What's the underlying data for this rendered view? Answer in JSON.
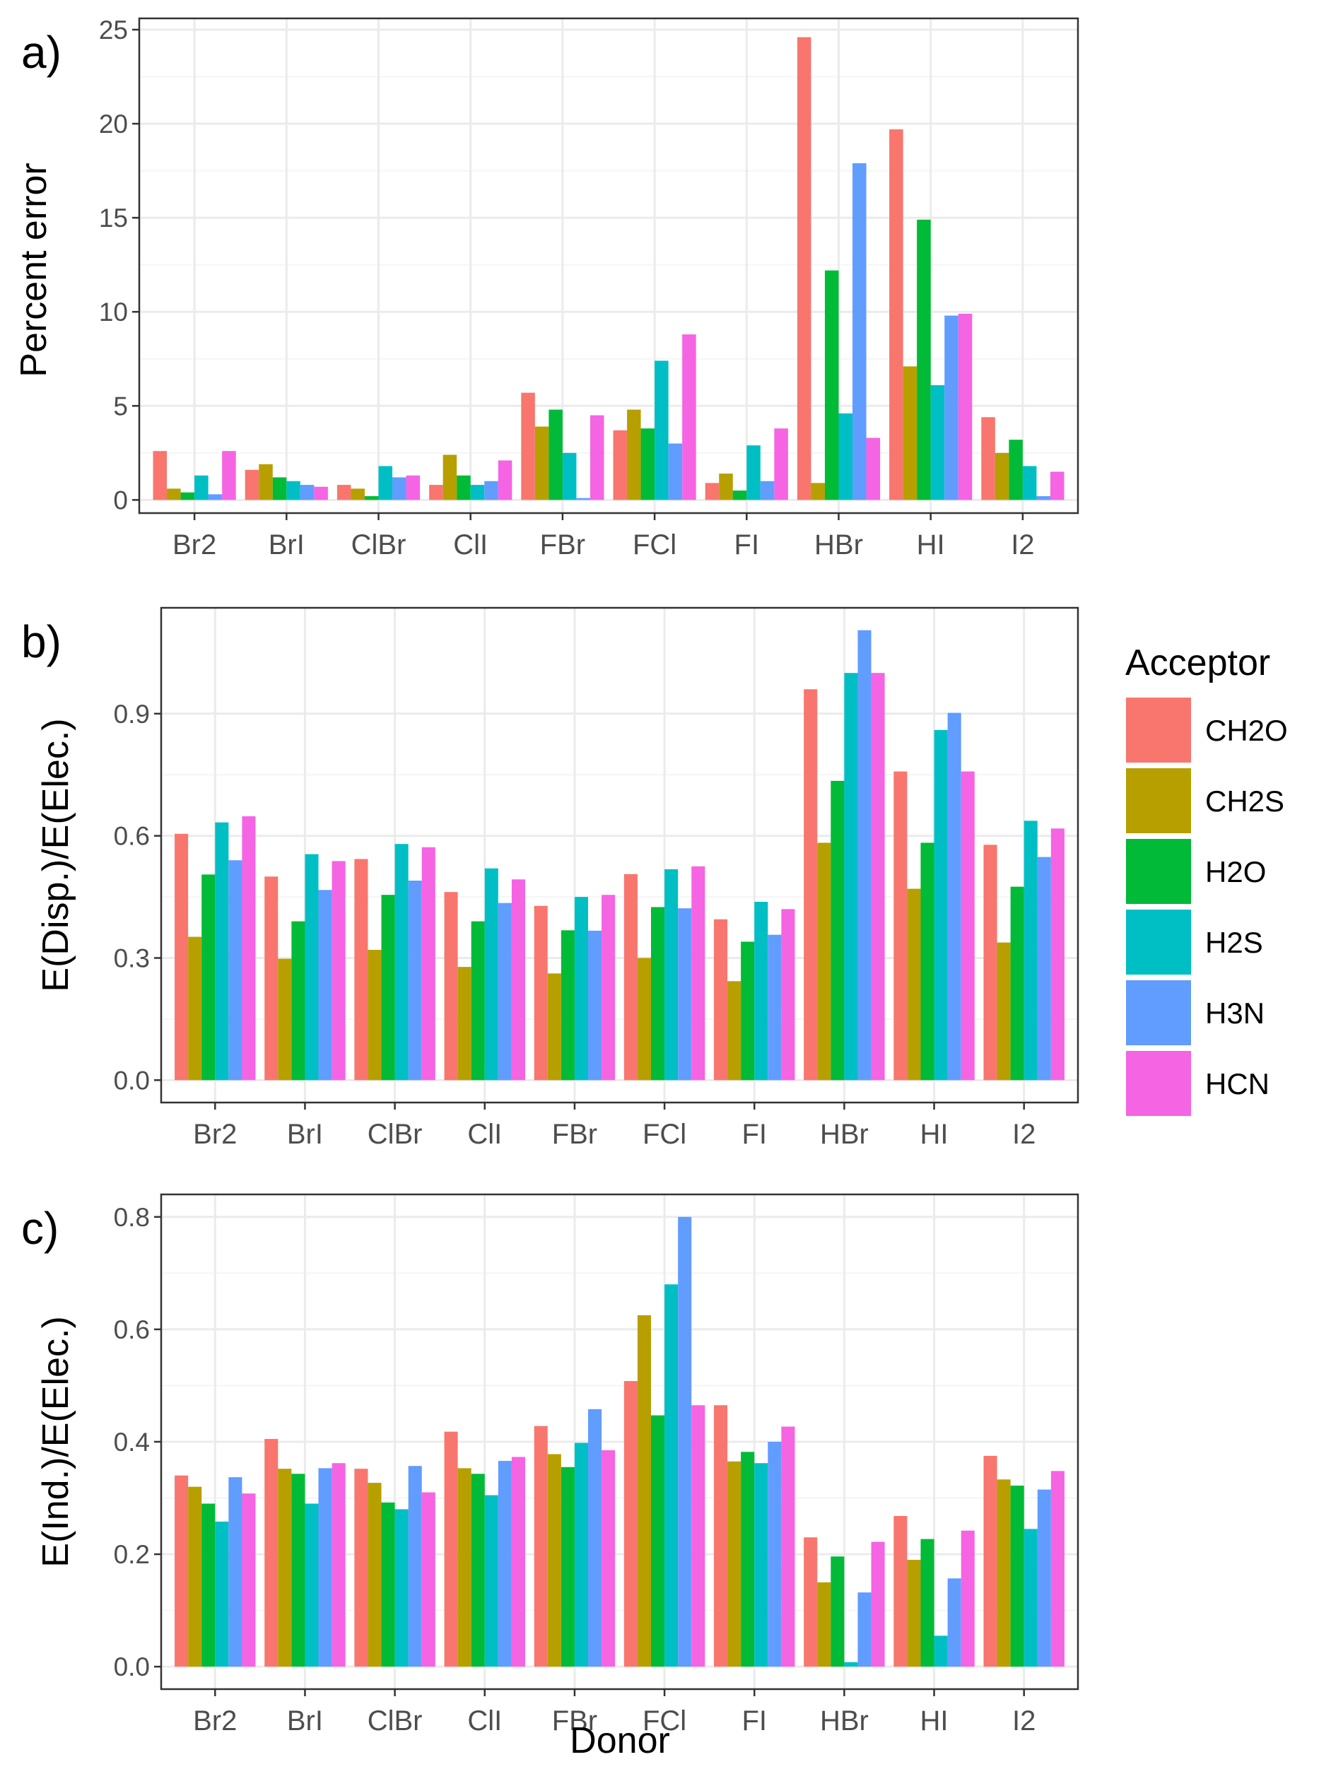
{
  "figure": {
    "xlabel": "Donor",
    "legend_title": "Acceptor"
  },
  "chart_data": [
    {
      "type": "bar",
      "panel_label": "a)",
      "ylabel": "Percent error",
      "ylim": [
        -0.7,
        25.6
      ],
      "yticks": [
        0,
        5,
        10,
        15,
        20,
        25
      ],
      "yticklabels": [
        "0",
        "5",
        "10",
        "15",
        "20",
        "25"
      ],
      "categories": [
        "Br2",
        "BrI",
        "ClBr",
        "ClI",
        "FBr",
        "FCl",
        "FI",
        "HBr",
        "HI",
        "I2"
      ],
      "series": [
        {
          "name": "CH2O",
          "values": [
            2.6,
            1.6,
            0.8,
            0.8,
            5.7,
            3.7,
            0.9,
            24.6,
            19.7,
            4.4
          ]
        },
        {
          "name": "CH2S",
          "values": [
            0.6,
            1.9,
            0.6,
            2.4,
            3.9,
            4.8,
            1.4,
            0.9,
            7.1,
            2.5
          ]
        },
        {
          "name": "H2O",
          "values": [
            0.4,
            1.2,
            0.2,
            1.3,
            4.8,
            3.8,
            0.5,
            12.2,
            14.9,
            3.2
          ]
        },
        {
          "name": "H2S",
          "values": [
            1.3,
            1.0,
            1.8,
            0.8,
            2.5,
            7.4,
            2.9,
            4.6,
            6.1,
            1.8
          ]
        },
        {
          "name": "H3N",
          "values": [
            0.3,
            0.8,
            1.2,
            1.0,
            0.1,
            3.0,
            1.0,
            17.9,
            9.8,
            0.2
          ]
        },
        {
          "name": "HCN",
          "values": [
            2.6,
            0.7,
            1.3,
            2.1,
            4.5,
            8.8,
            3.8,
            3.3,
            9.9,
            1.5
          ]
        }
      ]
    },
    {
      "type": "bar",
      "panel_label": "b)",
      "ylabel": "E(Disp.)/E(Elec.)",
      "ylim": [
        -0.055,
        1.16
      ],
      "yticks": [
        0,
        0.3,
        0.6,
        0.9
      ],
      "yticklabels": [
        "0.0",
        "0.3",
        "0.6",
        "0.9"
      ],
      "categories": [
        "Br2",
        "BrI",
        "ClBr",
        "ClI",
        "FBr",
        "FCl",
        "FI",
        "HBr",
        "HI",
        "I2"
      ],
      "series": [
        {
          "name": "CH2O",
          "values": [
            0.605,
            0.5,
            0.543,
            0.462,
            0.428,
            0.506,
            0.395,
            0.96,
            0.758,
            0.578
          ]
        },
        {
          "name": "CH2S",
          "values": [
            0.352,
            0.298,
            0.32,
            0.278,
            0.262,
            0.3,
            0.243,
            0.583,
            0.47,
            0.338
          ]
        },
        {
          "name": "H2O",
          "values": [
            0.505,
            0.39,
            0.455,
            0.39,
            0.368,
            0.425,
            0.34,
            0.735,
            0.583,
            0.475
          ]
        },
        {
          "name": "H2S",
          "values": [
            0.633,
            0.555,
            0.58,
            0.52,
            0.45,
            0.518,
            0.438,
            1.0,
            0.86,
            0.637
          ]
        },
        {
          "name": "H3N",
          "values": [
            0.54,
            0.467,
            0.49,
            0.435,
            0.367,
            0.422,
            0.357,
            1.105,
            0.902,
            0.548
          ]
        },
        {
          "name": "HCN",
          "values": [
            0.648,
            0.538,
            0.572,
            0.493,
            0.455,
            0.525,
            0.42,
            1.0,
            0.758,
            0.618
          ]
        }
      ]
    },
    {
      "type": "bar",
      "panel_label": "c)",
      "ylabel": "E(Ind.)/E(Elec.)",
      "ylim": [
        -0.04,
        0.84
      ],
      "yticks": [
        0,
        0.2,
        0.4,
        0.6,
        0.8
      ],
      "yticklabels": [
        "0.0",
        "0.2",
        "0.4",
        "0.6",
        "0.8"
      ],
      "categories": [
        "Br2",
        "BrI",
        "ClBr",
        "ClI",
        "FBr",
        "FCl",
        "FI",
        "HBr",
        "HI",
        "I2"
      ],
      "series": [
        {
          "name": "CH2O",
          "values": [
            0.34,
            0.405,
            0.352,
            0.418,
            0.428,
            0.508,
            0.465,
            0.23,
            0.268,
            0.375
          ]
        },
        {
          "name": "CH2S",
          "values": [
            0.32,
            0.352,
            0.327,
            0.353,
            0.378,
            0.625,
            0.365,
            0.15,
            0.19,
            0.333
          ]
        },
        {
          "name": "H2O",
          "values": [
            0.29,
            0.343,
            0.292,
            0.343,
            0.355,
            0.447,
            0.382,
            0.196,
            0.227,
            0.322
          ]
        },
        {
          "name": "H2S",
          "values": [
            0.258,
            0.29,
            0.28,
            0.305,
            0.398,
            0.68,
            0.362,
            0.008,
            0.055,
            0.245
          ]
        },
        {
          "name": "H3N",
          "values": [
            0.337,
            0.353,
            0.357,
            0.366,
            0.458,
            0.8,
            0.4,
            0.132,
            0.157,
            0.315
          ]
        },
        {
          "name": "HCN",
          "values": [
            0.308,
            0.362,
            0.31,
            0.373,
            0.385,
            0.465,
            0.427,
            0.222,
            0.242,
            0.348
          ]
        }
      ]
    }
  ],
  "colors": {
    "CH2O": "#F8766D",
    "CH2S": "#B79F00",
    "H2O": "#00BA38",
    "H2S": "#00BFC4",
    "H3N": "#619CFF",
    "HCN": "#F564E3",
    "grid_major": "#EBEBEB",
    "grid_minor": "#F5F5F5",
    "panel_border": "#333333",
    "tick_text": "#4D4D4D"
  }
}
